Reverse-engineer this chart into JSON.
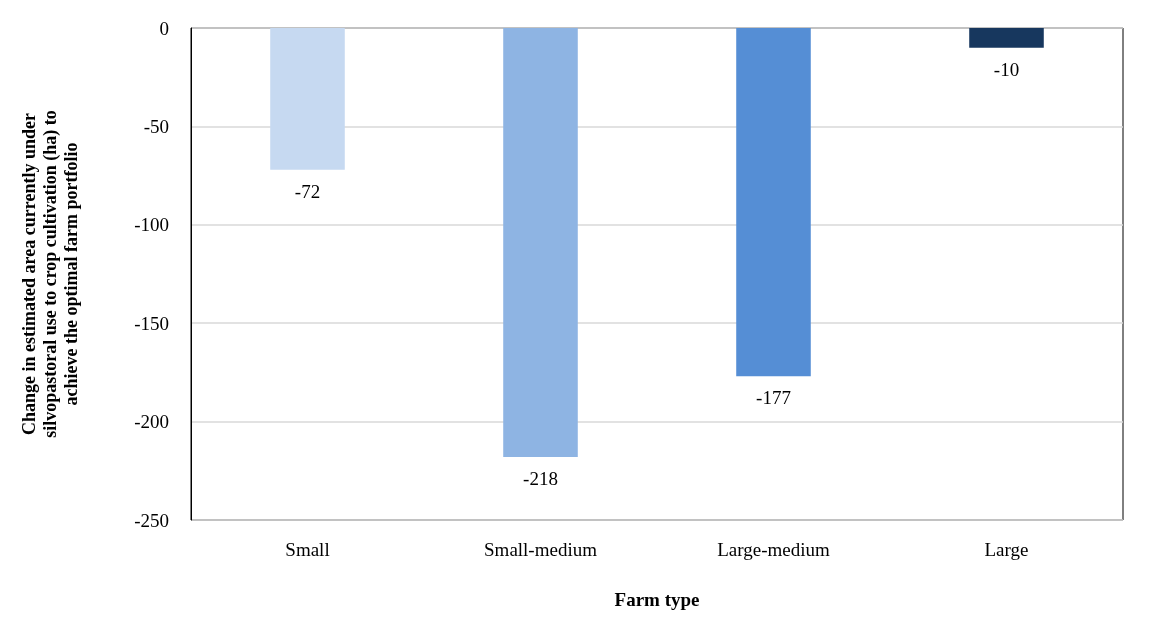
{
  "chart_data": {
    "type": "bar",
    "xlabel": "Farm type",
    "ylabel": "Change in estimated area currently under silvopastoral use to crop cultivation (ha) to achieve the optimal farm portfolio",
    "categories": [
      "Small",
      "Small-medium",
      "Large-medium",
      "Large"
    ],
    "values": [
      -72,
      -218,
      -177,
      -10
    ],
    "colors": [
      "#c6d9f1",
      "#8eb4e3",
      "#558ed5",
      "#17375e"
    ],
    "ylim": [
      -250,
      0
    ],
    "yticks": [
      -250,
      -200,
      -150,
      -100,
      -50,
      0
    ],
    "grid": "y",
    "data_labels": true
  }
}
